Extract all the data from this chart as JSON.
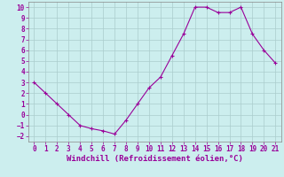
{
  "x": [
    0,
    1,
    2,
    3,
    4,
    5,
    6,
    7,
    8,
    9,
    10,
    11,
    12,
    13,
    14,
    15,
    16,
    17,
    18,
    19,
    20,
    21
  ],
  "y": [
    3.0,
    2.0,
    1.0,
    0.0,
    -1.0,
    -1.3,
    -1.5,
    -1.8,
    -0.5,
    1.0,
    2.5,
    3.5,
    5.5,
    7.5,
    10.0,
    10.0,
    9.5,
    9.5,
    10.0,
    7.5,
    6.0,
    4.8
  ],
  "line_color": "#990099",
  "marker": "+",
  "bg_color": "#cceeee",
  "grid_color": "#aacccc",
  "xlabel": "Windchill (Refroidissement éolien,°C)",
  "xlabel_color": "#990099",
  "tick_color": "#990099",
  "xlim": [
    -0.5,
    21.5
  ],
  "ylim": [
    -2.5,
    10.5
  ],
  "yticks": [
    -2,
    -1,
    0,
    1,
    2,
    3,
    4,
    5,
    6,
    7,
    8,
    9,
    10
  ],
  "xticks": [
    0,
    1,
    2,
    3,
    4,
    5,
    6,
    7,
    8,
    9,
    10,
    11,
    12,
    13,
    14,
    15,
    16,
    17,
    18,
    19,
    20,
    21
  ],
  "tick_fontsize": 5.5,
  "xlabel_fontsize": 6.5
}
